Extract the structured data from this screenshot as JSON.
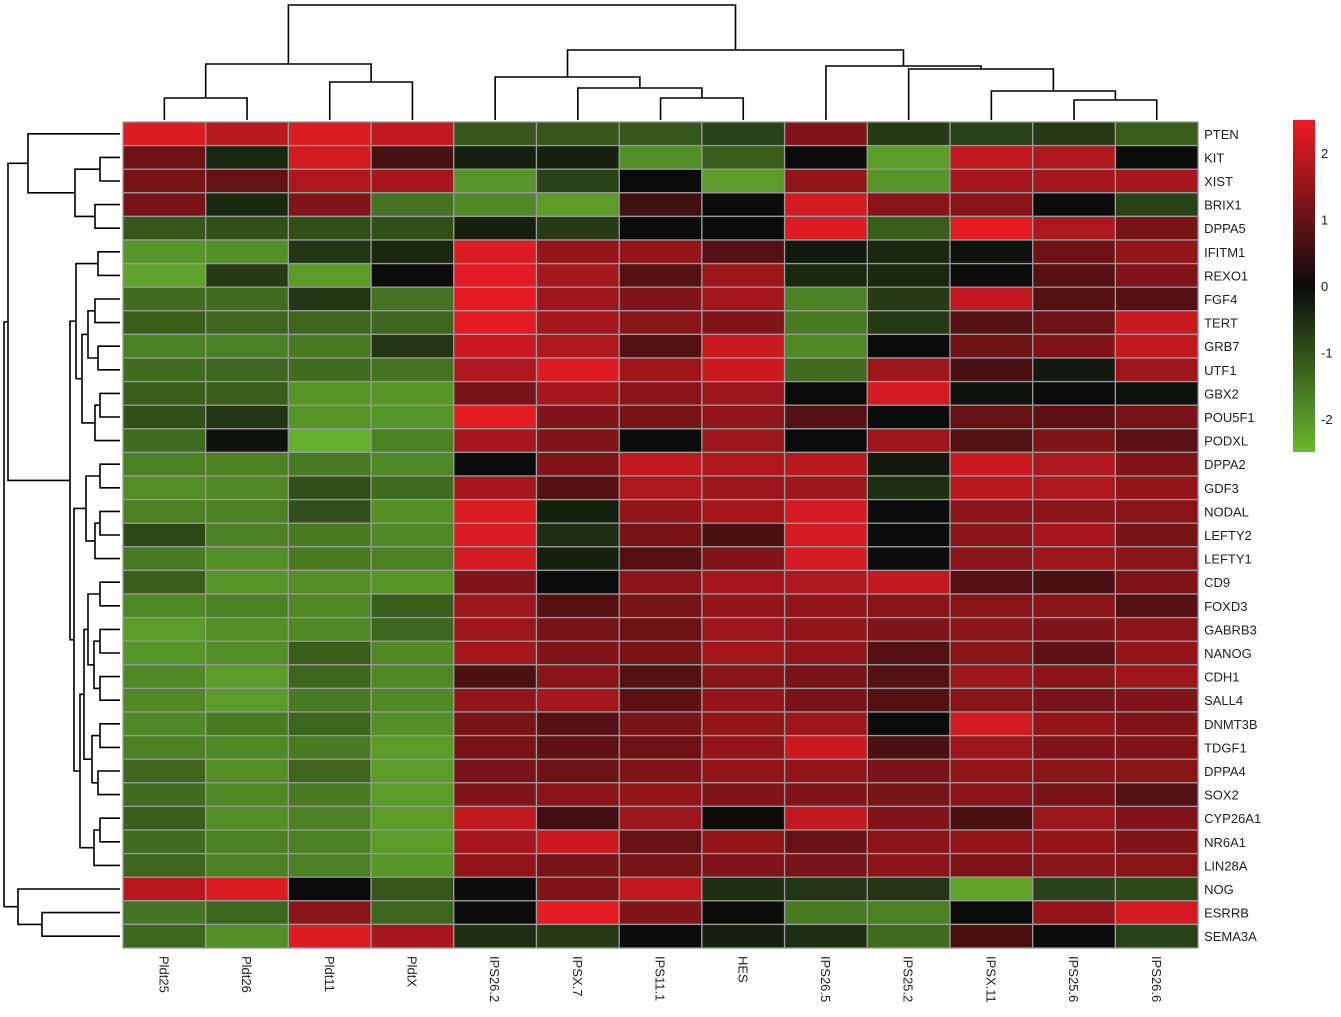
{
  "chart_data": {
    "type": "heatmap",
    "columns": [
      "Pldt25",
      "Pldt26",
      "Pldt11",
      "PldtX",
      "IPS26.2",
      "IPSX.7",
      "IPS11.1",
      "HES",
      "IPS26.5",
      "IPS25.2",
      "IPSX.11",
      "IPS25.6",
      "IPS26.6"
    ],
    "rows": [
      "PTEN",
      "KIT",
      "XIST",
      "BRIX1",
      "DPPA5",
      "IFITM1",
      "REXO1",
      "FGF4",
      "TERT",
      "GRB7",
      "UTF1",
      "GBX2",
      "POU5F1",
      "PODXL",
      "DPPA2",
      "GDF3",
      "NODAL",
      "LEFTY2",
      "LEFTY1",
      "CD9",
      "FOXD3",
      "GABRB3",
      "NANOG",
      "CDH1",
      "SALL4",
      "DNMT3B",
      "TDGF1",
      "DPPA4",
      "SOX2",
      "CYP26A1",
      "NR6A1",
      "LIN28A",
      "NOG",
      "ESRRB",
      "SEMA3A"
    ],
    "values": [
      [
        2.3,
        1.9,
        2.3,
        2.0,
        -1.1,
        -1.1,
        -1.1,
        -0.8,
        1.3,
        -0.7,
        -0.8,
        -0.7,
        -1.2
      ],
      [
        1.1,
        -0.4,
        2.2,
        0.7,
        -0.3,
        -0.3,
        -1.9,
        -1.2,
        0.0,
        -2.1,
        2.0,
        1.8,
        0.0
      ],
      [
        1.2,
        1.0,
        1.8,
        1.7,
        -2.0,
        -0.8,
        0.0,
        -2.1,
        1.5,
        -2.0,
        1.7,
        1.7,
        1.7
      ],
      [
        1.2,
        -0.4,
        1.3,
        -1.5,
        -1.8,
        -2.1,
        0.6,
        0.0,
        2.2,
        1.4,
        1.4,
        0.0,
        -0.8
      ],
      [
        -1.1,
        -1.0,
        -1.0,
        -1.0,
        -0.3,
        -0.7,
        0.0,
        0.0,
        2.3,
        -1.2,
        2.4,
        1.8,
        1.2
      ],
      [
        -2.0,
        -1.9,
        -0.6,
        -0.4,
        2.3,
        1.5,
        1.5,
        0.8,
        -0.2,
        -0.4,
        -0.1,
        1.1,
        1.5
      ],
      [
        -2.2,
        -0.7,
        -2.1,
        0.0,
        2.4,
        1.7,
        0.8,
        1.6,
        -0.4,
        -0.4,
        0.0,
        0.8,
        1.3
      ],
      [
        -1.4,
        -1.4,
        -0.6,
        -1.5,
        2.4,
        1.6,
        1.3,
        1.7,
        -1.7,
        -0.7,
        2.0,
        0.8,
        0.8
      ],
      [
        -1.2,
        -1.3,
        -1.3,
        -1.3,
        2.4,
        1.7,
        1.4,
        1.3,
        -1.6,
        -0.7,
        0.8,
        1.1,
        2.1
      ],
      [
        -1.7,
        -1.7,
        -1.6,
        -0.6,
        2.1,
        1.8,
        0.8,
        2.1,
        -1.8,
        0.0,
        1.1,
        1.3,
        2.0
      ],
      [
        -1.4,
        -1.3,
        -1.4,
        -1.5,
        1.8,
        2.3,
        1.6,
        2.1,
        -1.4,
        1.6,
        0.7,
        -0.2,
        1.6
      ],
      [
        -1.2,
        -1.2,
        -2.0,
        -2.0,
        1.2,
        1.7,
        1.4,
        1.6,
        0.0,
        2.2,
        -0.1,
        0.0,
        -0.1
      ],
      [
        -1.0,
        -0.6,
        -2.0,
        -2.0,
        2.4,
        1.3,
        1.2,
        1.5,
        0.8,
        0.0,
        1.0,
        0.9,
        1.2
      ],
      [
        -1.4,
        -0.1,
        -2.4,
        -1.7,
        1.7,
        1.3,
        0.0,
        1.6,
        0.0,
        1.6,
        0.8,
        1.3,
        0.9
      ],
      [
        -1.7,
        -1.7,
        -1.6,
        -1.8,
        0.0,
        1.3,
        2.0,
        1.8,
        1.9,
        -0.2,
        2.1,
        1.8,
        1.3
      ],
      [
        -1.9,
        -1.8,
        -1.0,
        -1.4,
        1.7,
        0.8,
        1.8,
        1.6,
        1.6,
        -0.5,
        1.9,
        1.8,
        1.5
      ],
      [
        -1.7,
        -1.7,
        -1.0,
        -1.9,
        2.3,
        -0.3,
        1.5,
        1.7,
        2.2,
        0.0,
        1.4,
        1.4,
        1.4
      ],
      [
        -0.9,
        -1.7,
        -1.6,
        -1.8,
        2.3,
        -0.5,
        1.2,
        0.7,
        2.2,
        0.0,
        1.4,
        1.7,
        1.2
      ],
      [
        -1.6,
        -1.9,
        -1.6,
        -1.7,
        2.2,
        -0.3,
        0.8,
        1.3,
        2.2,
        0.0,
        1.4,
        1.6,
        1.4
      ],
      [
        -1.2,
        -2.0,
        -1.9,
        -2.0,
        1.3,
        0.0,
        1.4,
        1.7,
        1.8,
        2.0,
        0.8,
        0.7,
        1.3
      ],
      [
        -1.8,
        -1.7,
        -1.8,
        -1.2,
        1.6,
        0.8,
        1.2,
        1.5,
        1.5,
        1.4,
        1.4,
        1.4,
        0.8
      ],
      [
        -2.1,
        -1.9,
        -1.8,
        -1.3,
        1.6,
        1.2,
        1.1,
        1.6,
        1.5,
        1.3,
        1.4,
        1.3,
        1.4
      ],
      [
        -2.0,
        -1.9,
        -1.2,
        -1.8,
        1.7,
        1.3,
        1.2,
        1.7,
        1.5,
        0.8,
        1.4,
        0.9,
        1.5
      ],
      [
        -1.8,
        -2.1,
        -1.3,
        -1.8,
        0.7,
        1.4,
        0.8,
        1.4,
        1.2,
        0.8,
        1.6,
        1.4,
        1.6
      ],
      [
        -1.8,
        -2.1,
        -1.6,
        -1.8,
        1.5,
        1.7,
        0.9,
        1.5,
        1.2,
        0.8,
        1.4,
        1.2,
        1.3
      ],
      [
        -1.8,
        -1.6,
        -1.3,
        -1.9,
        1.2,
        0.8,
        1.2,
        1.5,
        1.6,
        0.0,
        2.2,
        1.5,
        1.3
      ],
      [
        -1.7,
        -1.8,
        -1.6,
        -2.1,
        1.2,
        0.9,
        1.1,
        1.5,
        2.1,
        0.7,
        1.6,
        1.3,
        1.3
      ],
      [
        -1.3,
        -1.9,
        -1.3,
        -2.1,
        1.2,
        1.1,
        1.3,
        1.5,
        1.5,
        1.2,
        1.5,
        1.4,
        1.4
      ],
      [
        -1.4,
        -1.8,
        -1.6,
        -2.1,
        1.3,
        1.4,
        1.5,
        1.3,
        1.3,
        1.2,
        1.4,
        1.2,
        0.8
      ],
      [
        -1.2,
        -1.9,
        -1.7,
        -2.1,
        2.0,
        0.6,
        1.6,
        0.0,
        2.0,
        1.3,
        0.7,
        1.6,
        1.3
      ],
      [
        -1.4,
        -1.7,
        -1.7,
        -2.1,
        1.7,
        2.1,
        1.0,
        1.5,
        1.0,
        1.4,
        1.5,
        1.5,
        1.3
      ],
      [
        -1.3,
        -1.7,
        -1.7,
        -2.0,
        1.5,
        1.2,
        1.2,
        1.3,
        1.2,
        1.4,
        1.3,
        1.4,
        1.4
      ],
      [
        1.9,
        2.3,
        0.0,
        -1.1,
        0.0,
        1.3,
        2.0,
        -0.5,
        -0.6,
        -0.6,
        -2.2,
        -0.8,
        -0.9
      ],
      [
        -1.5,
        -1.3,
        1.4,
        -1.3,
        0.0,
        2.4,
        1.3,
        0.0,
        -1.6,
        -1.7,
        0.0,
        1.5,
        2.2
      ],
      [
        -1.3,
        -1.9,
        2.3,
        1.7,
        -0.5,
        -0.7,
        0.0,
        -0.3,
        -0.5,
        -1.4,
        0.7,
        0.0,
        -0.8
      ]
    ],
    "color_scale": {
      "min": -2.5,
      "max": 2.5,
      "low_color": "#6ab82f",
      "mid_color": "#0b0b0b",
      "high_color": "#ee1c24",
      "ticks": [
        "2",
        "1",
        "0",
        "-1",
        "-2"
      ],
      "tick_values": [
        2,
        1,
        0,
        -1,
        -2
      ]
    },
    "dendrograms": [
      "rows",
      "columns"
    ],
    "legend_position": "top-right",
    "grid_color": "#9a9a9a"
  }
}
